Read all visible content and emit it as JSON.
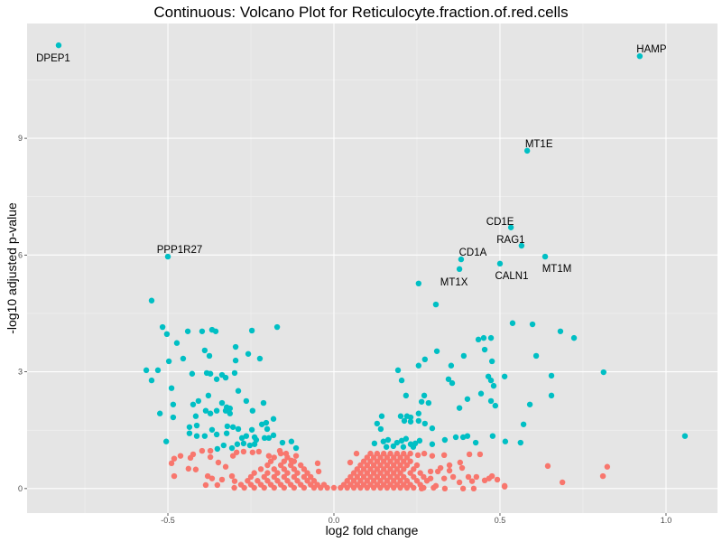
{
  "chart_data": {
    "type": "scatter",
    "title": "Continuous: Volcano Plot for Reticulocyte.fraction.of.red.cells",
    "xlabel": "log2 fold change",
    "ylabel": "-log10 adjusted p-value",
    "xlim": [
      -0.924,
      1.155
    ],
    "ylim": [
      -0.63,
      11.95
    ],
    "x_ticks": [
      {
        "value": -0.5,
        "label": "-0.5"
      },
      {
        "value": 0.0,
        "label": "0.0"
      },
      {
        "value": 0.5,
        "label": "0.5"
      },
      {
        "value": 1.0,
        "label": "1.0"
      }
    ],
    "y_ticks": [
      {
        "value": 0,
        "label": "0"
      },
      {
        "value": 3,
        "label": "3"
      },
      {
        "value": 6,
        "label": "6"
      },
      {
        "value": 9,
        "label": "9"
      }
    ],
    "x_minor": [
      -0.75,
      -0.25,
      0.25,
      0.75
    ],
    "y_minor": [
      1.5,
      4.5,
      7.5,
      10.5
    ],
    "grid": true,
    "legend": "none",
    "colors": {
      "significant": "#00BFC4",
      "not_significant": "#F8766D",
      "panel": "#E5E5E5",
      "grid": "#FFFFFF"
    },
    "labeled_points": [
      {
        "label": "DPEP1",
        "x": -0.829,
        "y": 11.39,
        "label_pos": "below-left"
      },
      {
        "label": "HAMP",
        "x": 0.921,
        "y": 11.11,
        "label_pos": "above-right"
      },
      {
        "label": "MT1E",
        "x": 0.582,
        "y": 8.68,
        "label_pos": "above-right"
      },
      {
        "label": "CD1E",
        "x": 0.533,
        "y": 6.71,
        "label_pos": "above-left"
      },
      {
        "label": "RAG1",
        "x": 0.565,
        "y": 6.24,
        "label_pos": "above-left"
      },
      {
        "label": "MT1M",
        "x": 0.636,
        "y": 5.96,
        "label_pos": "below-right"
      },
      {
        "label": "CD1A",
        "x": 0.383,
        "y": 5.89,
        "label_pos": "above-right"
      },
      {
        "label": "MT1X",
        "x": 0.378,
        "y": 5.64,
        "label_pos": "below-left"
      },
      {
        "label": "CALN1",
        "x": 0.5,
        "y": 5.78,
        "label_pos": "below-right"
      },
      {
        "label": "PPP1R27",
        "x": -0.5,
        "y": 5.96,
        "label_pos": "above-right"
      }
    ],
    "series": [
      {
        "name": "significant",
        "color": "#00BFC4",
        "points": [
          [
            -0.549,
            4.83
          ],
          [
            -0.516,
            4.15
          ],
          [
            -0.503,
            3.97
          ],
          [
            -0.44,
            4.04
          ],
          [
            -0.397,
            4.04
          ],
          [
            -0.367,
            4.08
          ],
          [
            -0.356,
            4.04
          ],
          [
            -0.247,
            4.06
          ],
          [
            -0.171,
            4.15
          ],
          [
            -0.473,
            3.74
          ],
          [
            -0.389,
            3.55
          ],
          [
            -0.375,
            3.41
          ],
          [
            -0.296,
            3.64
          ],
          [
            -0.258,
            3.46
          ],
          [
            -0.223,
            3.34
          ],
          [
            -0.497,
            3.27
          ],
          [
            -0.454,
            3.34
          ],
          [
            -0.296,
            3.29
          ],
          [
            -0.565,
            3.04
          ],
          [
            -0.53,
            3.04
          ],
          [
            -0.549,
            2.78
          ],
          [
            -0.427,
            2.95
          ],
          [
            -0.383,
            2.97
          ],
          [
            -0.372,
            2.95
          ],
          [
            -0.353,
            2.81
          ],
          [
            -0.337,
            2.92
          ],
          [
            -0.326,
            2.85
          ],
          [
            -0.299,
            2.97
          ],
          [
            -0.489,
            2.58
          ],
          [
            -0.288,
            2.51
          ],
          [
            -0.378,
            2.39
          ],
          [
            -0.484,
            2.16
          ],
          [
            -0.424,
            2.16
          ],
          [
            -0.408,
            2.25
          ],
          [
            -0.337,
            2.2
          ],
          [
            -0.323,
            2.09
          ],
          [
            -0.313,
            2.06
          ],
          [
            -0.326,
            2.0
          ],
          [
            -0.313,
            1.93
          ],
          [
            -0.386,
            2.0
          ],
          [
            -0.372,
            1.93
          ],
          [
            -0.353,
            2.0
          ],
          [
            -0.264,
            2.25
          ],
          [
            -0.212,
            2.2
          ],
          [
            -0.245,
            2.0
          ],
          [
            -0.182,
            1.79
          ],
          [
            -0.524,
            1.93
          ],
          [
            -0.484,
            1.83
          ],
          [
            -0.416,
            1.86
          ],
          [
            -0.435,
            1.58
          ],
          [
            -0.413,
            1.62
          ],
          [
            -0.367,
            1.51
          ],
          [
            -0.321,
            1.6
          ],
          [
            -0.304,
            1.58
          ],
          [
            -0.288,
            1.53
          ],
          [
            -0.247,
            1.51
          ],
          [
            -0.217,
            1.65
          ],
          [
            -0.204,
            1.69
          ],
          [
            -0.201,
            1.53
          ],
          [
            -0.435,
            1.42
          ],
          [
            -0.413,
            1.35
          ],
          [
            -0.389,
            1.35
          ],
          [
            -0.353,
            1.39
          ],
          [
            -0.323,
            1.42
          ],
          [
            -0.264,
            1.35
          ],
          [
            -0.277,
            1.3
          ],
          [
            -0.239,
            1.32
          ],
          [
            -0.209,
            1.3
          ],
          [
            -0.196,
            1.3
          ],
          [
            -0.182,
            1.37
          ],
          [
            -0.505,
            1.21
          ],
          [
            -0.332,
            1.11
          ],
          [
            -0.307,
            1.04
          ],
          [
            -0.291,
            1.14
          ],
          [
            -0.272,
            1.16
          ],
          [
            -0.253,
            1.11
          ],
          [
            -0.239,
            1.14
          ],
          [
            -0.234,
            1.25
          ],
          [
            -0.155,
            1.18
          ],
          [
            -0.128,
            1.21
          ],
          [
            -0.114,
            1.04
          ],
          [
            -0.351,
            1.02
          ],
          [
            0.255,
            5.27
          ],
          [
            0.307,
            4.73
          ],
          [
            0.538,
            4.25
          ],
          [
            0.598,
            4.22
          ],
          [
            0.682,
            4.04
          ],
          [
            0.723,
            3.87
          ],
          [
            0.435,
            3.83
          ],
          [
            0.451,
            3.87
          ],
          [
            0.473,
            3.87
          ],
          [
            0.454,
            3.57
          ],
          [
            0.476,
            3.27
          ],
          [
            0.31,
            3.53
          ],
          [
            0.391,
            3.41
          ],
          [
            0.609,
            3.41
          ],
          [
            0.255,
            3.16
          ],
          [
            0.274,
            3.32
          ],
          [
            0.353,
            3.16
          ],
          [
            0.465,
            2.88
          ],
          [
            0.514,
            2.88
          ],
          [
            0.655,
            2.9
          ],
          [
            0.812,
            2.99
          ],
          [
            0.193,
            3.04
          ],
          [
            0.204,
            2.78
          ],
          [
            0.345,
            2.81
          ],
          [
            0.356,
            2.71
          ],
          [
            0.473,
            2.78
          ],
          [
            0.481,
            2.64
          ],
          [
            0.655,
            2.39
          ],
          [
            0.443,
            2.44
          ],
          [
            0.402,
            2.3
          ],
          [
            0.378,
            2.07
          ],
          [
            0.473,
            2.25
          ],
          [
            0.486,
            2.13
          ],
          [
            0.59,
            2.16
          ],
          [
            0.571,
            1.65
          ],
          [
            0.272,
            2.39
          ],
          [
            0.264,
            2.23
          ],
          [
            0.285,
            2.2
          ],
          [
            0.217,
            2.39
          ],
          [
            0.255,
            1.93
          ],
          [
            0.255,
            1.74
          ],
          [
            0.274,
            1.67
          ],
          [
            0.231,
            1.83
          ],
          [
            0.212,
            1.74
          ],
          [
            0.296,
            1.55
          ],
          [
            0.334,
            1.25
          ],
          [
            0.367,
            1.32
          ],
          [
            0.389,
            1.32
          ],
          [
            0.402,
            1.35
          ],
          [
            0.427,
            1.18
          ],
          [
            0.478,
            1.35
          ],
          [
            0.516,
            1.21
          ],
          [
            0.562,
            1.18
          ],
          [
            1.057,
            1.35
          ],
          [
            0.13,
            1.67
          ],
          [
            0.141,
            1.53
          ],
          [
            0.144,
            1.86
          ],
          [
            0.201,
            1.86
          ],
          [
            0.22,
            1.86
          ],
          [
            0.231,
            1.72
          ],
          [
            0.296,
            1.14
          ],
          [
            0.122,
            1.16
          ],
          [
            0.149,
            1.21
          ],
          [
            0.163,
            1.25
          ],
          [
            0.19,
            1.18
          ],
          [
            0.204,
            1.23
          ],
          [
            0.217,
            1.28
          ],
          [
            0.231,
            1.14
          ],
          [
            0.245,
            1.16
          ],
          [
            0.258,
            1.23
          ],
          [
            0.158,
            1.07
          ],
          [
            0.179,
            1.09
          ],
          [
            0.209,
            1.07
          ],
          [
            0.239,
            1.07
          ]
        ]
      },
      {
        "name": "not_significant",
        "color": "#F8766D",
        "points": [
          [
            -0.489,
            0.65
          ],
          [
            -0.481,
            0.77
          ],
          [
            -0.462,
            0.84
          ],
          [
            -0.481,
            0.32
          ],
          [
            -0.424,
            0.88
          ],
          [
            -0.432,
            0.79
          ],
          [
            -0.397,
            0.97
          ],
          [
            -0.372,
            0.97
          ],
          [
            -0.372,
            0.81
          ],
          [
            -0.348,
            0.67
          ],
          [
            -0.438,
            0.51
          ],
          [
            -0.416,
            0.49
          ],
          [
            -0.38,
            0.32
          ],
          [
            -0.367,
            0.26
          ],
          [
            -0.351,
            0.09
          ],
          [
            -0.386,
            0.09
          ],
          [
            -0.337,
            0.23
          ],
          [
            -0.326,
            0.56
          ],
          [
            -0.304,
            0.84
          ],
          [
            -0.293,
            0.93
          ],
          [
            -0.272,
            0.95
          ],
          [
            -0.245,
            0.93
          ],
          [
            -0.226,
            0.95
          ],
          [
            -0.196,
            0.84
          ],
          [
            -0.163,
            0.97
          ],
          [
            -0.144,
            0.9
          ],
          [
            -0.128,
            0.72
          ],
          [
            -0.114,
            0.84
          ],
          [
            -0.049,
            0.65
          ],
          [
            -0.046,
            0.44
          ],
          [
            -0.307,
            0.32
          ],
          [
            -0.299,
            0.19
          ],
          [
            0.049,
            0.67
          ],
          [
            0.068,
            0.9
          ],
          [
            0.253,
            0.86
          ],
          [
            0.272,
            0.9
          ],
          [
            0.296,
            0.84
          ],
          [
            0.332,
            0.86
          ],
          [
            0.408,
            0.88
          ],
          [
            0.44,
            0.88
          ],
          [
            0.38,
            0.67
          ],
          [
            0.386,
            0.53
          ],
          [
            0.348,
            0.6
          ],
          [
            0.348,
            0.46
          ],
          [
            0.313,
            0.44
          ],
          [
            0.321,
            0.53
          ],
          [
            0.291,
            0.44
          ],
          [
            0.291,
            0.26
          ],
          [
            0.332,
            0.26
          ],
          [
            0.359,
            0.3
          ],
          [
            0.378,
            0.16
          ],
          [
            0.405,
            0.3
          ],
          [
            0.416,
            0.19
          ],
          [
            0.429,
            0.3
          ],
          [
            0.454,
            0.21
          ],
          [
            0.467,
            0.26
          ],
          [
            0.476,
            0.32
          ],
          [
            0.492,
            0.23
          ],
          [
            0.514,
            0.07
          ],
          [
            0.389,
            0.0
          ],
          [
            0.421,
            0.0
          ],
          [
            0.307,
            0.07
          ],
          [
            0.334,
            0.0
          ],
          [
            0.264,
            0.0
          ],
          [
            0.644,
            0.58
          ],
          [
            0.688,
            0.16
          ],
          [
            0.81,
            0.32
          ],
          [
            0.823,
            0.56
          ],
          [
            0.514,
            0.05
          ]
        ]
      }
    ],
    "not_significant_core_rows": [
      {
        "y": 0.02,
        "x": [
          -0.3,
          -0.27,
          -0.24,
          -0.21,
          -0.18,
          -0.15,
          -0.12,
          -0.09,
          -0.06,
          -0.04,
          -0.02,
          0.0,
          0.02,
          0.04,
          0.06,
          0.08,
          0.1,
          0.12,
          0.14,
          0.16,
          0.18,
          0.2,
          0.22,
          0.24,
          0.27,
          0.3
        ]
      },
      {
        "y": 0.1,
        "x": [
          -0.28,
          -0.25,
          -0.22,
          -0.19,
          -0.16,
          -0.13,
          -0.1,
          -0.07,
          -0.05,
          -0.03,
          0.03,
          0.05,
          0.07,
          0.09,
          0.11,
          0.13,
          0.15,
          0.17,
          0.19,
          0.21,
          0.23,
          0.26
        ]
      },
      {
        "y": 0.2,
        "x": [
          -0.26,
          -0.23,
          -0.2,
          -0.17,
          -0.14,
          -0.11,
          -0.08,
          -0.06,
          0.04,
          0.06,
          0.08,
          0.1,
          0.12,
          0.14,
          0.16,
          0.18,
          0.2,
          0.22,
          0.25,
          0.28
        ]
      },
      {
        "y": 0.3,
        "x": [
          -0.25,
          -0.21,
          -0.18,
          -0.15,
          -0.12,
          -0.09,
          -0.07,
          0.05,
          0.07,
          0.09,
          0.11,
          0.13,
          0.15,
          0.17,
          0.19,
          0.21,
          0.24,
          0.27
        ]
      },
      {
        "y": 0.4,
        "x": [
          -0.24,
          -0.2,
          -0.17,
          -0.14,
          -0.11,
          -0.08,
          0.06,
          0.08,
          0.1,
          0.12,
          0.14,
          0.16,
          0.18,
          0.2,
          0.23,
          0.26
        ]
      },
      {
        "y": 0.5,
        "x": [
          -0.22,
          -0.18,
          -0.15,
          -0.12,
          -0.09,
          0.07,
          0.09,
          0.11,
          0.13,
          0.15,
          0.17,
          0.19,
          0.21,
          0.24
        ]
      },
      {
        "y": 0.6,
        "x": [
          -0.2,
          -0.16,
          -0.13,
          -0.1,
          0.08,
          0.1,
          0.12,
          0.14,
          0.16,
          0.18,
          0.2,
          0.22,
          0.25
        ]
      },
      {
        "y": 0.7,
        "x": [
          -0.19,
          -0.15,
          -0.12,
          0.09,
          0.11,
          0.13,
          0.15,
          0.17,
          0.19,
          0.21,
          0.23
        ]
      },
      {
        "y": 0.8,
        "x": [
          -0.18,
          -0.14,
          0.1,
          0.12,
          0.14,
          0.16,
          0.18,
          0.2,
          0.22
        ]
      },
      {
        "y": 0.9,
        "x": [
          -0.16,
          0.11,
          0.13,
          0.15,
          0.17,
          0.19,
          0.21,
          0.23
        ]
      }
    ]
  }
}
